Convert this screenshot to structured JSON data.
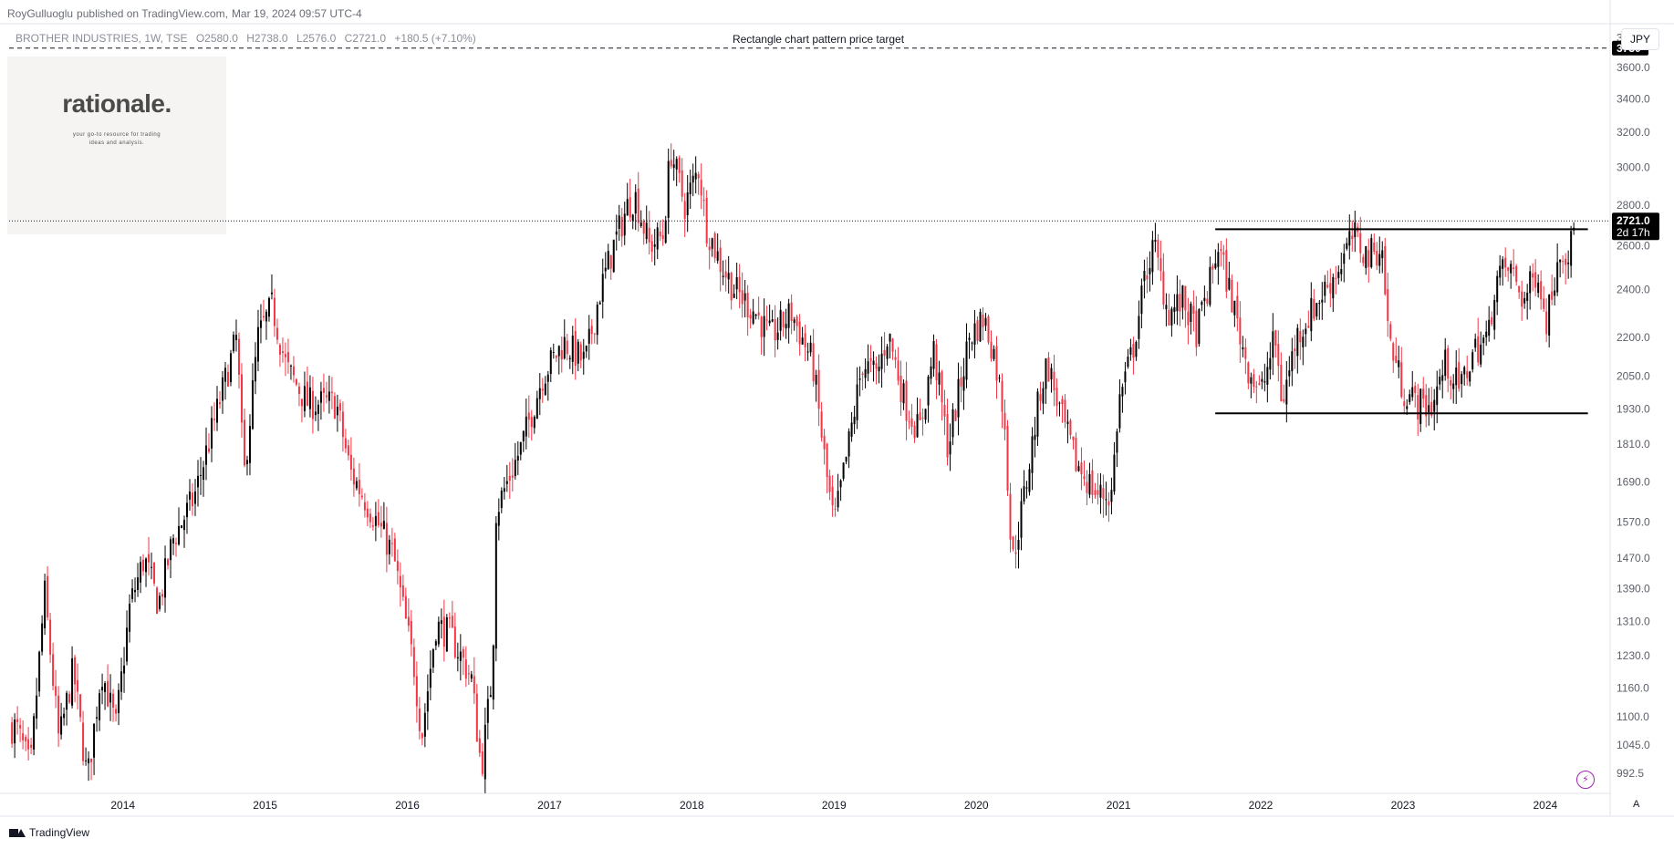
{
  "publisher": {
    "author": "RoyGulluoglu",
    "text": "published on TradingView.com,",
    "date": "Mar 19, 2024 09:57 UTC-4"
  },
  "legend": {
    "symbol": "BROTHER INDUSTRIES, 1W, TSE",
    "open": "O2580.0",
    "high": "H2738.0",
    "low": "L2576.0",
    "close": "C2721.0",
    "change": "+180.5 (+7.10%)"
  },
  "logo": {
    "title": "rationale.",
    "tagline_1": "your go-to resource for trading",
    "tagline_2": "ideas and analysis."
  },
  "currency": "JPY",
  "footer": {
    "brand": "TradingView"
  },
  "controls": {
    "auto_label": "A",
    "bolt_icon": "lightning-icon"
  },
  "colors": {
    "up": "#000000",
    "down": "#f23645",
    "accent": "#9c27b0",
    "tag_bg": "#000000"
  },
  "chart_data": {
    "type": "candlestick",
    "scale": "logarithmic",
    "interval": "1W",
    "x_axis_ticks": [
      "2014",
      "2015",
      "2016",
      "2017",
      "2018",
      "2019",
      "2020",
      "2021",
      "2022",
      "2023",
      "2024"
    ],
    "y_axis_ticks": [
      992.5,
      1045.0,
      1100.0,
      1160.0,
      1230.0,
      1310.0,
      1390.0,
      1470.0,
      1570.0,
      1690.0,
      1810.0,
      1930.0,
      2050.0,
      2200.0,
      2400.0,
      2600.0,
      2800.0,
      3000.0,
      3200.0,
      3400.0,
      3600.0,
      3800.0
    ],
    "y_axis_tick_labels": [
      "992.5",
      "1045.0",
      "1100.0",
      "1160.0",
      "1230.0",
      "1310.0",
      "1390.0",
      "1470.0",
      "1570.0",
      "1690.0",
      "1810.0",
      "1930.0",
      "2050.0",
      "2200.0",
      "2400.0",
      "2600.0",
      "2800.0",
      "3000.0",
      "3200.0",
      "3400.0",
      "3600.0",
      "3800.0"
    ],
    "ylim": [
      960,
      3900
    ],
    "xlim": [
      2013.2,
      2024.45
    ],
    "path_points": [
      [
        2013.25,
        1080
      ],
      [
        2013.35,
        1000
      ],
      [
        2013.45,
        1380
      ],
      [
        2013.55,
        1050
      ],
      [
        2013.65,
        1200
      ],
      [
        2013.75,
        980
      ],
      [
        2013.85,
        1200
      ],
      [
        2013.95,
        1080
      ],
      [
        2014.05,
        1350
      ],
      [
        2014.15,
        1470
      ],
      [
        2014.25,
        1350
      ],
      [
        2014.35,
        1520
      ],
      [
        2014.5,
        1640
      ],
      [
        2014.65,
        1900
      ],
      [
        2014.8,
        2200
      ],
      [
        2014.85,
        1700
      ],
      [
        2014.95,
        2200
      ],
      [
        2015.05,
        2330
      ],
      [
        2015.15,
        2080
      ],
      [
        2015.3,
        1950
      ],
      [
        2015.5,
        1950
      ],
      [
        2015.6,
        1720
      ],
      [
        2015.75,
        1600
      ],
      [
        2015.9,
        1480
      ],
      [
        2016.05,
        1200
      ],
      [
        2016.1,
        1060
      ],
      [
        2016.2,
        1300
      ],
      [
        2016.3,
        1280
      ],
      [
        2016.45,
        1180
      ],
      [
        2016.52,
        1000
      ],
      [
        2016.6,
        1200
      ],
      [
        2016.62,
        1600
      ],
      [
        2016.8,
        1800
      ],
      [
        2016.95,
        2050
      ],
      [
        2017.1,
        2180
      ],
      [
        2017.25,
        2100
      ],
      [
        2017.35,
        2380
      ],
      [
        2017.45,
        2600
      ],
      [
        2017.55,
        2800
      ],
      [
        2017.6,
        2850
      ],
      [
        2017.7,
        2600
      ],
      [
        2017.8,
        2650
      ],
      [
        2017.85,
        3100
      ],
      [
        2017.95,
        2800
      ],
      [
        2018.05,
        3000
      ],
      [
        2018.1,
        2700
      ],
      [
        2018.2,
        2520
      ],
      [
        2018.3,
        2400
      ],
      [
        2018.45,
        2300
      ],
      [
        2018.55,
        2200
      ],
      [
        2018.7,
        2300
      ],
      [
        2018.85,
        2100
      ],
      [
        2018.95,
        1700
      ],
      [
        2019.0,
        1560
      ],
      [
        2019.1,
        1800
      ],
      [
        2019.2,
        2100
      ],
      [
        2019.3,
        2050
      ],
      [
        2019.38,
        2220
      ],
      [
        2019.5,
        1950
      ],
      [
        2019.6,
        1850
      ],
      [
        2019.7,
        2150
      ],
      [
        2019.8,
        1800
      ],
      [
        2019.9,
        2050
      ],
      [
        2019.95,
        2200
      ],
      [
        2020.05,
        2280
      ],
      [
        2020.12,
        2150
      ],
      [
        2020.2,
        1900
      ],
      [
        2020.25,
        1450
      ],
      [
        2020.35,
        1680
      ],
      [
        2020.45,
        2000
      ],
      [
        2020.5,
        2100
      ],
      [
        2020.6,
        1900
      ],
      [
        2020.7,
        1750
      ],
      [
        2020.85,
        1650
      ],
      [
        2020.95,
        1650
      ],
      [
        2021.0,
        1950
      ],
      [
        2021.1,
        2150
      ],
      [
        2021.2,
        2500
      ],
      [
        2021.25,
        2600
      ],
      [
        2021.35,
        2300
      ],
      [
        2021.45,
        2350
      ],
      [
        2021.55,
        2220
      ],
      [
        2021.65,
        2450
      ],
      [
        2021.7,
        2600
      ],
      [
        2021.8,
        2350
      ],
      [
        2021.9,
        2100
      ],
      [
        2022.0,
        1980
      ],
      [
        2022.1,
        2200
      ],
      [
        2022.15,
        1950
      ],
      [
        2022.25,
        2200
      ],
      [
        2022.35,
        2300
      ],
      [
        2022.45,
        2400
      ],
      [
        2022.55,
        2500
      ],
      [
        2022.65,
        2650
      ],
      [
        2022.75,
        2550
      ],
      [
        2022.85,
        2600
      ],
      [
        2022.9,
        2200
      ],
      [
        2023.0,
        2000
      ],
      [
        2023.1,
        1950
      ],
      [
        2023.2,
        1940
      ],
      [
        2023.3,
        2100
      ],
      [
        2023.4,
        2000
      ],
      [
        2023.5,
        2150
      ],
      [
        2023.6,
        2200
      ],
      [
        2023.65,
        2450
      ],
      [
        2023.75,
        2500
      ],
      [
        2023.85,
        2350
      ],
      [
        2023.95,
        2500
      ],
      [
        2024.0,
        2250
      ],
      [
        2024.05,
        2400
      ],
      [
        2024.1,
        2600
      ],
      [
        2024.17,
        2560
      ],
      [
        2024.21,
        2721
      ]
    ],
    "annotations": {
      "target_label": "Rectangle chart pattern price target",
      "target_price": 3730,
      "target_tag": "3730",
      "current_price_tag": "2721.0",
      "countdown_tag": "2d 17h",
      "current_price": 2721,
      "rectangle_top": 2680,
      "rectangle_bottom": 1915,
      "rectangle_start": 2021.68,
      "rectangle_end": 2024.3
    }
  }
}
